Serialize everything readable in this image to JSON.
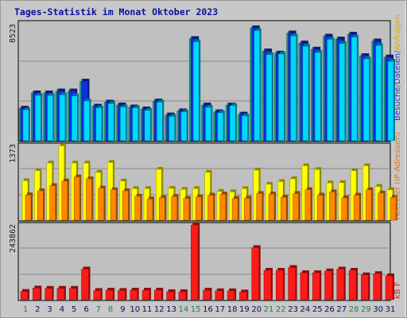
{
  "chart_data": {
    "type": "bar",
    "title": "Tages-Statistik im Monat Oktober 2023",
    "categories": [
      "1",
      "2",
      "3",
      "4",
      "5",
      "6",
      "7",
      "8",
      "9",
      "10",
      "11",
      "12",
      "13",
      "14",
      "15",
      "16",
      "17",
      "18",
      "19",
      "20",
      "21",
      "22",
      "23",
      "24",
      "25",
      "26",
      "27",
      "28",
      "29",
      "30",
      "31"
    ],
    "weekend_days": [
      "1",
      "7",
      "8",
      "14",
      "15",
      "21",
      "22",
      "28",
      "29"
    ],
    "panels": [
      {
        "ymax_label": "8523",
        "ymax": 8523,
        "right_label_parts": [
          "Anfragen",
          "/",
          "Dateien",
          "/",
          "Besuche"
        ],
        "series": [
          {
            "name": "Anfragen",
            "color": "#1fa080",
            "values": [
              2350,
              3460,
              3460,
              3600,
              3600,
              4310,
              2500,
              2790,
              2590,
              2440,
              2300,
              2870,
              1860,
              2160,
              7400,
              2580,
              2090,
              2580,
              1920,
              8170,
              6500,
              6340,
              7800,
              7070,
              6630,
              7570,
              7360,
              7710,
              6160,
              7220,
              6060
            ]
          },
          {
            "name": "Dateien",
            "color": "#1030e0",
            "values": [
              2350,
              3460,
              3460,
              3600,
              3600,
              4310,
              2500,
              2790,
              2590,
              2440,
              2300,
              2870,
              1860,
              2160,
              7400,
              2580,
              2090,
              2580,
              1920,
              8170,
              6500,
              6340,
              7800,
              7070,
              6630,
              7570,
              7360,
              7710,
              6160,
              7220,
              6060
            ]
          },
          {
            "name": "Besuche",
            "color": "#00d8ff",
            "values": [
              2240,
              3280,
              3280,
              3320,
              3240,
              2880,
              2380,
              2690,
              2440,
              2380,
              2200,
              2790,
              1760,
              2080,
              7160,
              2420,
              2020,
              2540,
              1790,
              7970,
              6230,
              6280,
              7580,
              6840,
              6380,
              7340,
              7040,
              7500,
              5920,
              6890,
              5750
            ]
          }
        ]
      },
      {
        "ymax_label": "1373",
        "ymax": 1373,
        "right_label_parts": [
          "Rechner (IP-Adressen)"
        ],
        "series": [
          {
            "name": "Seiten",
            "color": "#ffff00",
            "values": [
              725,
              910,
              1050,
              1370,
              1050,
              1050,
              880,
              1060,
              720,
              580,
              580,
              935,
              585,
              565,
              580,
              880,
              530,
              520,
              580,
              920,
              660,
              710,
              760,
              1000,
              930,
              685,
              690,
              910,
              1000,
              620,
              560
            ]
          },
          {
            "name": "Rechner",
            "color": "#ff8800",
            "values": [
              465,
              540,
              635,
              720,
              795,
              760,
              590,
              560,
              540,
              440,
              390,
              415,
              435,
              400,
              430,
              460,
              480,
              400,
              405,
              490,
              480,
              420,
              490,
              560,
              460,
              520,
              410,
              460,
              560,
              500,
              420
            ]
          }
        ]
      },
      {
        "ymax_label": "243862",
        "ymax": 243862,
        "right_label_parts": [
          "kB F"
        ],
        "series": [
          {
            "name": "kB F",
            "color": "#ff1a1a",
            "values": [
              27000,
              38000,
              37000,
              37000,
              37000,
              100000,
              30000,
              31000,
              30000,
              31000,
              31000,
              31000,
              26000,
              26000,
              243862,
              31000,
              29000,
              29000,
              25000,
              170000,
              96000,
              96000,
              105000,
              88000,
              88000,
              94000,
              100000,
              96000,
              81000,
              85000,
              78000
            ]
          }
        ]
      }
    ]
  }
}
